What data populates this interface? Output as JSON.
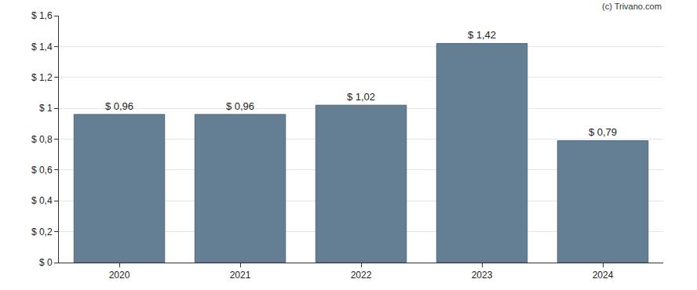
{
  "chart_data": {
    "type": "bar",
    "categories": [
      "2020",
      "2021",
      "2022",
      "2023",
      "2024"
    ],
    "values": [
      0.96,
      0.96,
      1.02,
      1.42,
      0.79
    ],
    "value_labels": [
      "$ 0,96",
      "$ 0,96",
      "$ 1,02",
      "$ 1,42",
      "$ 0,79"
    ],
    "data_labels": true,
    "color": "#647f94",
    "ylim": [
      0,
      1.6
    ],
    "yticks": [
      {
        "value": 0,
        "label": "$ 0"
      },
      {
        "value": 0.2,
        "label": "$ 0,2"
      },
      {
        "value": 0.4,
        "label": "$ 0,4"
      },
      {
        "value": 0.6,
        "label": "$ 0,6"
      },
      {
        "value": 0.8,
        "label": "$ 0,8"
      },
      {
        "value": 1,
        "label": "$ 1"
      },
      {
        "value": 1.2,
        "label": "$ 1,2"
      },
      {
        "value": 1.4,
        "label": "$ 1,4"
      },
      {
        "value": 1.6,
        "label": "$ 1,6"
      }
    ],
    "grid": true,
    "annotations": [
      "(c) Trivano.com"
    ]
  }
}
